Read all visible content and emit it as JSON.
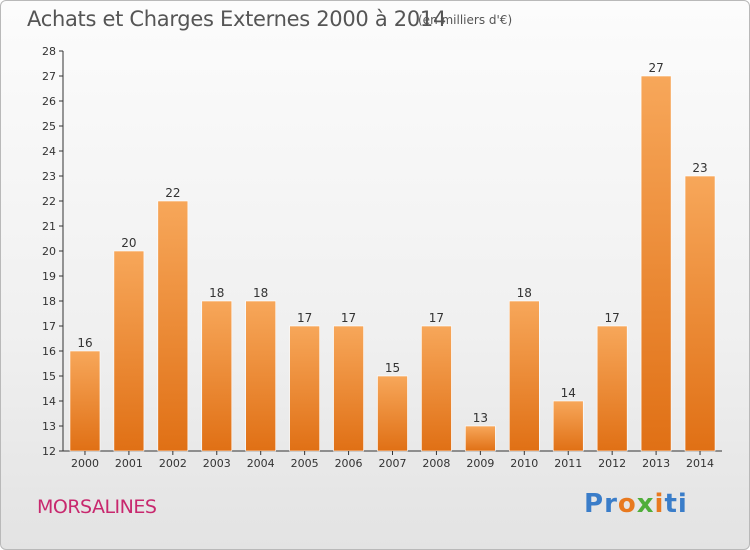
{
  "title": "Achats et Charges Externes 2000 à 2014",
  "subtitle": "(en milliers d'€)",
  "town": "MORSALINES",
  "logo": {
    "letters": [
      {
        "ch": "P",
        "color": "#3a7dc9"
      },
      {
        "ch": "r",
        "color": "#3a7dc9"
      },
      {
        "ch": "o",
        "color": "#e8791f"
      },
      {
        "ch": "x",
        "color": "#4fae3a"
      },
      {
        "ch": "i",
        "color": "#e8791f"
      },
      {
        "ch": "t",
        "color": "#3a7dc9"
      },
      {
        "ch": "i",
        "color": "#3a7dc9"
      }
    ]
  },
  "colors": {
    "bar_top": "#f7a75a",
    "bar_bottom": "#e07015",
    "axis": "#333333",
    "grid": "#cccccc"
  },
  "chart_data": {
    "type": "bar",
    "categories": [
      "2000",
      "2001",
      "2002",
      "2003",
      "2004",
      "2005",
      "2006",
      "2007",
      "2008",
      "2009",
      "2010",
      "2011",
      "2012",
      "2013",
      "2014"
    ],
    "values": [
      16,
      20,
      22,
      18,
      18,
      17,
      17,
      15,
      17,
      13,
      18,
      14,
      17,
      27,
      23
    ],
    "data_labels": [
      "16",
      "20",
      "22",
      "18",
      "18",
      "17",
      "17",
      "15",
      "17",
      "13",
      "18",
      "14",
      "17",
      "27",
      "23"
    ],
    "yticks": [
      "12",
      "13",
      "14",
      "15",
      "16",
      "17",
      "18",
      "19",
      "20",
      "21",
      "22",
      "23",
      "24",
      "25",
      "26",
      "27",
      "28"
    ],
    "ylim": [
      12,
      28
    ],
    "xlabel": "",
    "ylabel": "",
    "grid": false
  }
}
